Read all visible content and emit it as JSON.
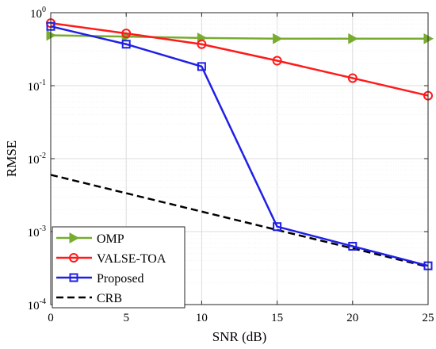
{
  "chart_data": {
    "type": "line",
    "xlabel": "SNR (dB)",
    "ylabel": "RMSE",
    "x": [
      0,
      5,
      10,
      15,
      20,
      25
    ],
    "xlim": [
      0,
      25
    ],
    "ylim": [
      0.0001,
      1
    ],
    "yscale": "log",
    "grid": true,
    "legend_position": "bottom-left",
    "x_ticks": [
      "0",
      "5",
      "10",
      "15",
      "20",
      "25"
    ],
    "y_ticks": [
      {
        "value": 1,
        "base": "10",
        "exp": "0"
      },
      {
        "value": 0.1,
        "base": "10",
        "exp": "-1"
      },
      {
        "value": 0.01,
        "base": "10",
        "exp": "-2"
      },
      {
        "value": 0.001,
        "base": "10",
        "exp": "-3"
      },
      {
        "value": 0.0001,
        "base": "10",
        "exp": "-4"
      }
    ],
    "series": [
      {
        "name": "OMP",
        "color": "#77ac30",
        "marker": "triangle-right",
        "dash": "solid",
        "x": [
          0,
          5,
          10,
          15,
          20,
          25
        ],
        "values": [
          0.49,
          0.47,
          0.45,
          0.44,
          0.44,
          0.44
        ]
      },
      {
        "name": "VALSE-TOA",
        "color": "#ff1a1a",
        "marker": "circle",
        "dash": "solid",
        "x": [
          0,
          5,
          10,
          15,
          20,
          25
        ],
        "values": [
          0.72,
          0.52,
          0.37,
          0.22,
          0.127,
          0.073
        ]
      },
      {
        "name": "Proposed",
        "color": "#1f1fe6",
        "marker": "square",
        "dash": "solid",
        "x": [
          0,
          5,
          10,
          15,
          20,
          25
        ],
        "values": [
          0.65,
          0.37,
          0.183,
          0.00117,
          0.00063,
          0.00034
        ]
      },
      {
        "name": "CRB",
        "color": "#000000",
        "marker": "none",
        "dash": "dashed",
        "x": [
          0,
          25
        ],
        "values": [
          0.006,
          0.00033
        ]
      }
    ]
  }
}
